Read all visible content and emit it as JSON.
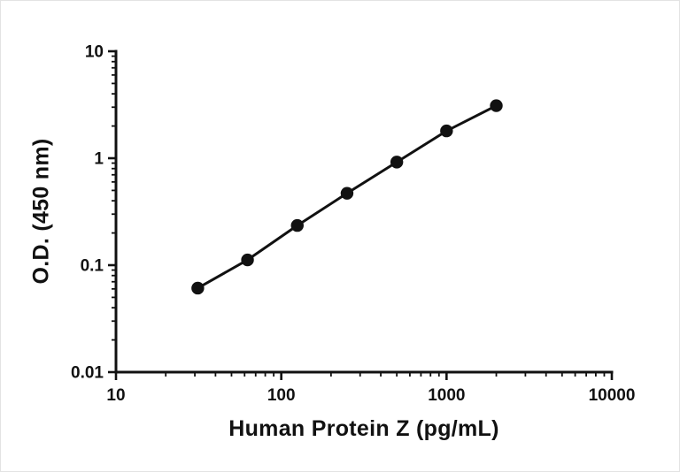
{
  "chart": {
    "x_axis_tick_labels": [
      "10",
      "100",
      "1000",
      "10000"
    ],
    "y_axis_tick_labels": [
      "0.01",
      "0.1",
      "1",
      "10"
    ]
  },
  "chart_data": {
    "type": "scatter",
    "title": "",
    "xlabel": "Human Protein Z (pg/mL)",
    "ylabel": "O.D. (450 nm)",
    "x_scale": "log",
    "y_scale": "log",
    "xlim": [
      10,
      10000
    ],
    "ylim": [
      0.01,
      10
    ],
    "x_ticks": [
      10,
      100,
      1000,
      10000
    ],
    "y_ticks": [
      0.01,
      0.1,
      1,
      10
    ],
    "x": [
      31.25,
      62.5,
      125,
      250,
      500,
      1000,
      2000
    ],
    "y": [
      0.061,
      0.112,
      0.235,
      0.47,
      0.92,
      1.8,
      3.1
    ],
    "marker_color": "#111111",
    "line_color": "#111111",
    "axis_color": "#111111",
    "grid": false,
    "legend": "none"
  }
}
